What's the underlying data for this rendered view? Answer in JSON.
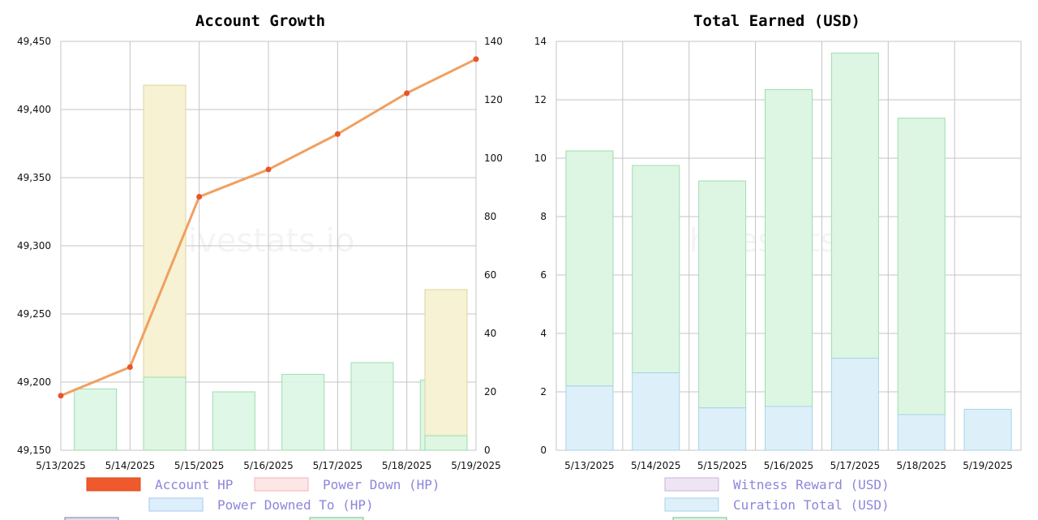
{
  "watermark": "hivestats.io",
  "colors": {
    "grid": "#c4c4c4",
    "line": "#f0a060",
    "line_point": "#e8542a",
    "green_fill": "#dcf6e3",
    "green_stroke": "#9fdcae",
    "yellow_fill": "#f6f2d3",
    "yellow_stroke": "#ddd4a0",
    "blue_fill": "#ddf0fa",
    "blue_stroke": "#a9d2e6",
    "legend_text": "#8c86dc"
  },
  "chart_data": [
    {
      "type": "bar",
      "title": "Account Growth",
      "categories": [
        "5/13/2025",
        "5/14/2025",
        "5/15/2025",
        "5/16/2025",
        "5/17/2025",
        "5/18/2025",
        "5/19/2025"
      ],
      "y_left_ticks": [
        "49,450",
        "49,400",
        "49,350",
        "49,300",
        "49,250",
        "49,200",
        "49,150"
      ],
      "y_right_ticks": [
        "140",
        "120",
        "100",
        "80",
        "60",
        "40",
        "20",
        "0"
      ],
      "ylim_left": [
        49150,
        49450
      ],
      "ylim_right": [
        0,
        140
      ],
      "series": [
        {
          "name": "Account HP",
          "axis": "left",
          "kind": "line",
          "values": [
            49190,
            49211,
            49336,
            49356,
            49382,
            49412,
            49437
          ]
        },
        {
          "name": "Power Down (HP)",
          "axis": "right",
          "kind": "bar",
          "values": [
            null,
            125,
            null,
            null,
            null,
            null,
            55
          ]
        },
        {
          "name": "Power Downed To (HP)",
          "axis": "right",
          "kind": "bar",
          "values": [
            null,
            25,
            null,
            null,
            null,
            null,
            5
          ]
        },
        {
          "axis": "right",
          "kind": "bar",
          "values": [
            21,
            25,
            20,
            26,
            30,
            24,
            5
          ]
        }
      ],
      "legend": [
        "Account HP",
        "Power Down (HP)",
        "Power Downed To (HP)"
      ],
      "grid": true
    },
    {
      "type": "bar",
      "title": "Total Earned (USD)",
      "categories": [
        "5/13/2025",
        "5/14/2025",
        "5/15/2025",
        "5/16/2025",
        "5/17/2025",
        "5/18/2025",
        "5/19/2025"
      ],
      "y_ticks": [
        "14",
        "12",
        "10",
        "8",
        "6",
        "4",
        "2",
        "0"
      ],
      "ylim": [
        0,
        14
      ],
      "stacked": true,
      "series": [
        {
          "name": "Curation Total (USD)",
          "values": [
            2.2,
            2.65,
            1.45,
            1.5,
            3.15,
            1.22,
            1.4
          ]
        },
        {
          "values": [
            8.05,
            7.1,
            7.77,
            10.85,
            10.45,
            10.15,
            0
          ]
        }
      ],
      "legend": [
        "Witness Reward (USD)",
        "Curation Total (USD)"
      ],
      "grid": true
    }
  ]
}
